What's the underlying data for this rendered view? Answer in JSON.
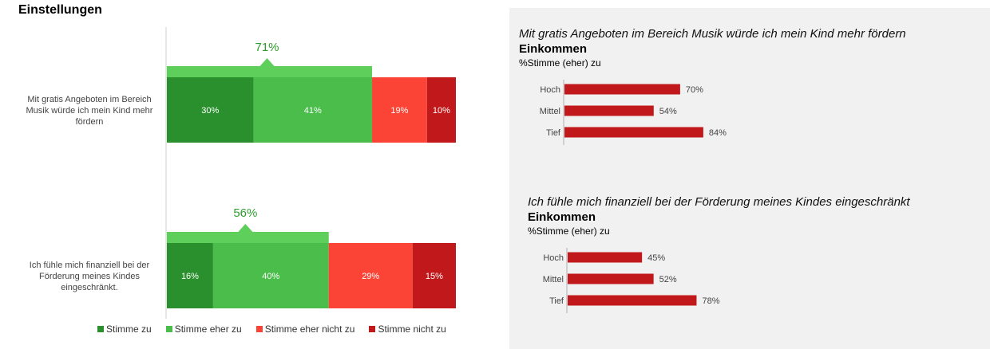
{
  "page": {
    "title": "Einstellungen"
  },
  "colors": {
    "stimme_zu": "#2a8f2d",
    "stimme_eher_zu": "#4bbd4b",
    "stimme_eher_nicht_zu": "#fb4435",
    "stimme_nicht_zu": "#c1191b",
    "summary_bar": "#5ecf5a",
    "summary_text": "#2e9d2e",
    "red_bar": "#c1191b",
    "panel_bg": "#f1f1f1"
  },
  "chart_data": [
    {
      "type": "bar",
      "orientation": "horizontal",
      "stacked": true,
      "title": "Einstellungen",
      "categories": [
        "Mit gratis Angeboten im Bereich Musik würde ich mein Kind mehr fördern",
        "Ich fühle mich finanziell bei der Förderung meines Kindes eingeschränkt."
      ],
      "category_lines": [
        [
          "Mit gratis Angeboten im Bereich",
          "Musik würde ich mein Kind mehr",
          "fördern"
        ],
        [
          "Ich fühle mich finanziell bei der",
          "Förderung meines Kindes",
          "eingeschränkt."
        ]
      ],
      "series": [
        {
          "name": "Stimme zu",
          "values": [
            30,
            16
          ]
        },
        {
          "name": "Stimme eher zu",
          "values": [
            41,
            40
          ]
        },
        {
          "name": "Stimme eher nicht zu",
          "values": [
            19,
            29
          ]
        },
        {
          "name": "Stimme nicht zu",
          "values": [
            10,
            15
          ]
        }
      ],
      "summary_totals": [
        71,
        56
      ],
      "value_suffix": "%",
      "xlim": [
        0,
        100
      ],
      "legend_position": "bottom"
    },
    {
      "type": "bar",
      "orientation": "horizontal",
      "title": "Mit gratis Angeboten im Bereich Musik würde  ich mein Kind mehr fördern",
      "subtitle": "Einkommen",
      "note": "%Stimme  (eher) zu",
      "categories": [
        "Hoch",
        "Mittel",
        "Tief"
      ],
      "values": [
        70,
        54,
        84
      ],
      "value_suffix": "%",
      "xlim": [
        0,
        100
      ]
    },
    {
      "type": "bar",
      "orientation": "horizontal",
      "title": "Ich fühle mich finanziell bei der Förderung meines Kindes eingeschränkt",
      "subtitle": "Einkommen",
      "note": "%Stimme  (eher) zu",
      "categories": [
        "Hoch",
        "Mittel",
        "Tief"
      ],
      "values": [
        45,
        52,
        78
      ],
      "value_suffix": "%",
      "xlim": [
        0,
        100
      ]
    }
  ]
}
